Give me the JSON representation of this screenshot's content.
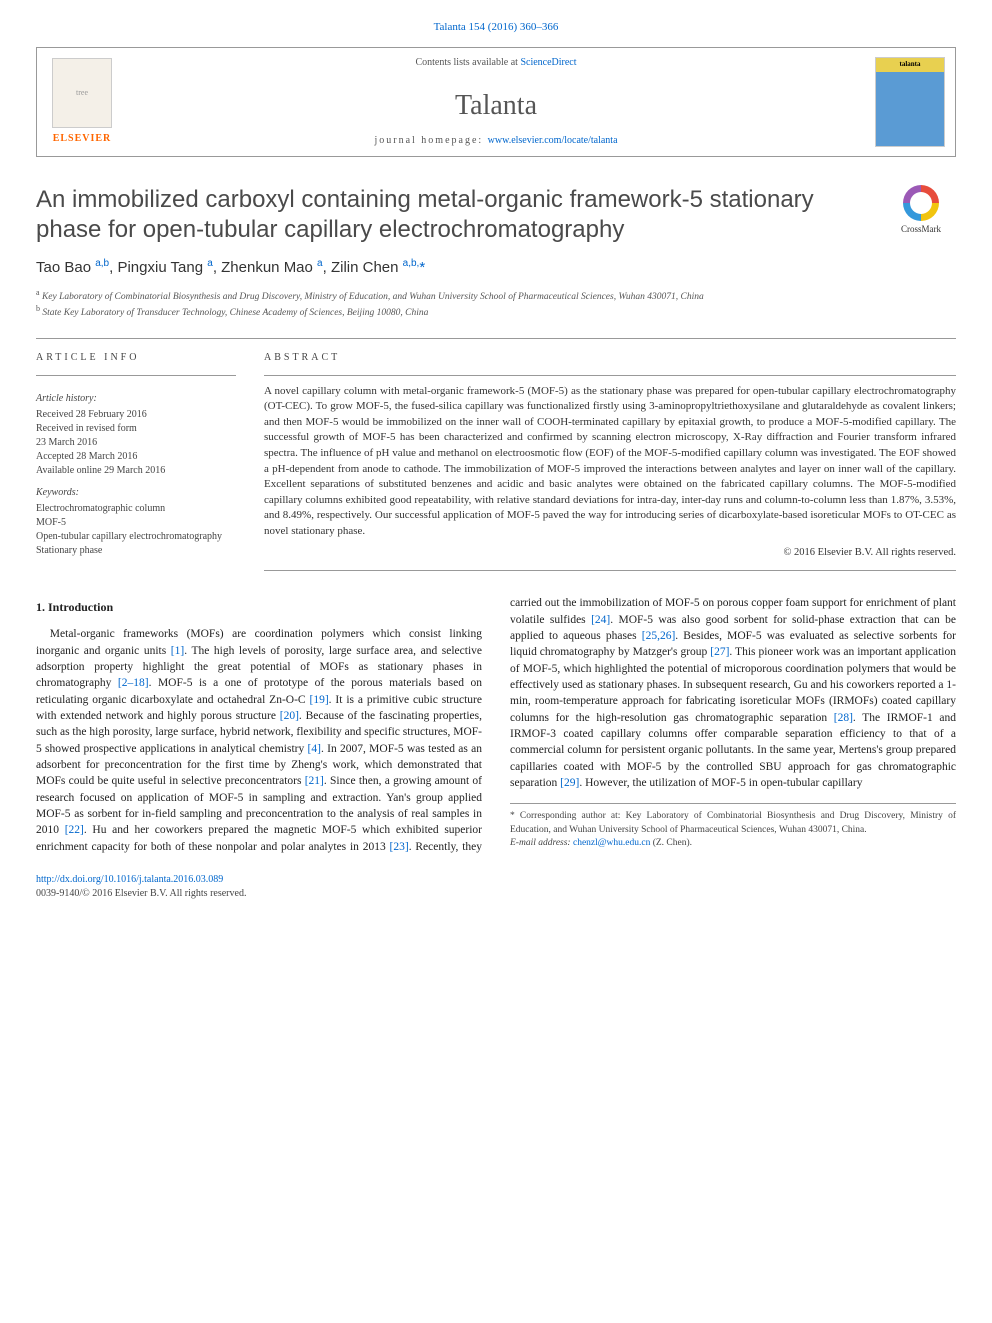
{
  "journal_ref": "Talanta 154 (2016) 360–366",
  "header": {
    "contents_prefix": "Contents lists available at ",
    "contents_link": "ScienceDirect",
    "journal_name": "Talanta",
    "homepage_prefix": "journal homepage: ",
    "homepage_link": "www.elsevier.com/locate/talanta",
    "elsevier": "ELSEVIER",
    "cover_band": "talanta"
  },
  "title": "An immobilized carboxyl containing metal-organic framework-5 stationary phase for open-tubular capillary electrochromatography",
  "crossmark_label": "CrossMark",
  "authors_html": "Tao Bao <sup>a,b</sup>, Pingxiu Tang <sup>a</sup>, Zhenkun Mao <sup>a</sup>, Zilin Chen <sup>a,b,</sup><span class='ast'>*</span>",
  "affiliations": {
    "a": "Key Laboratory of Combinatorial Biosynthesis and Drug Discovery, Ministry of Education, and Wuhan University School of Pharmaceutical Sciences, Wuhan 430071, China",
    "b": "State Key Laboratory of Transducer Technology, Chinese Academy of Sciences, Beijing 10080, China"
  },
  "article_info": {
    "heading": "ARTICLE INFO",
    "history_label": "Article history:",
    "history": [
      "Received 28 February 2016",
      "Received in revised form",
      "23 March 2016",
      "Accepted 28 March 2016",
      "Available online 29 March 2016"
    ],
    "keywords_label": "Keywords:",
    "keywords": [
      "Electrochromatographic column",
      "MOF-5",
      "Open-tubular capillary electrochromatography",
      "Stationary phase"
    ]
  },
  "abstract": {
    "heading": "ABSTRACT",
    "body": "A novel capillary column with metal-organic framework-5 (MOF-5) as the stationary phase was prepared for open-tubular capillary electrochromatography (OT-CEC). To grow MOF-5, the fused-silica capillary was functionalized firstly using 3-aminopropyltriethoxysilane and glutaraldehyde as covalent linkers; and then MOF-5 would be immobilized on the inner wall of COOH-terminated capillary by epitaxial growth, to produce a MOF-5-modified capillary. The successful growth of MOF-5 has been characterized and confirmed by scanning electron microscopy, X-Ray diffraction and Fourier transform infrared spectra. The influence of pH value and methanol on electroosmotic flow (EOF) of the MOF-5-modified capillary column was investigated. The EOF showed a pH-dependent from anode to cathode. The immobilization of MOF-5 improved the interactions between analytes and layer on inner wall of the capillary. Excellent separations of substituted benzenes and acidic and basic analytes were obtained on the fabricated capillary columns. The MOF-5-modified capillary columns exhibited good repeatability, with relative standard deviations for intra-day, inter-day runs and column-to-column less than 1.87%, 3.53%, and 8.49%, respectively. Our successful application of MOF-5 paved the way for introducing series of dicarboxylate-based isoreticular MOFs to OT-CEC as novel stationary phase.",
    "copyright": "© 2016 Elsevier B.V. All rights reserved."
  },
  "section1": {
    "heading": "1. Introduction",
    "p1_a": "Metal-organic frameworks (MOFs) are coordination polymers which consist linking inorganic and organic units ",
    "c1": "[1]",
    "p1_b": ". The high levels of porosity, large surface area, and selective adsorption property highlight the great potential of MOFs as stationary phases in chromatography ",
    "c2": "[2–18]",
    "p1_c": ". MOF-5 is a one of prototype of the porous materials based on reticulating organic dicarboxylate and octahedral Zn-O-C ",
    "c3": "[19]",
    "p1_d": ". It is a primitive cubic structure with extended network and highly porous structure ",
    "c4": "[20]",
    "p1_e": ". Because of the fascinating properties, such as the high porosity, large surface, hybrid network, flexibility and specific structures, MOF-5 showed prospective applications in analytical chemistry ",
    "c5": "[4]",
    "p1_f": ". In 2007, MOF-5 was tested as an adsorbent for preconcentration for the first time by Zheng's work, which demonstrated that MOFs could be quite useful in selective preconcentrators ",
    "c6": "[21]",
    "p1_g": ". Since then, a growing amount of research focused on application of MOF-5 in sampling",
    "p2_a": "and extraction. Yan's group applied MOF-5 as sorbent for in-field sampling and preconcentration to the analysis of real samples in 2010 ",
    "c7": "[22]",
    "p2_b": ". Hu and her coworkers prepared the magnetic MOF-5 which exhibited superior enrichment capacity for both of these nonpolar and polar analytes in 2013 ",
    "c8": "[23]",
    "p2_c": ". Recently, they carried out the immobilization of MOF-5 on porous copper foam support for enrichment of plant volatile sulfides ",
    "c9": "[24]",
    "p2_d": ". MOF-5 was also good sorbent for solid-phase extraction that can be applied to aqueous phases ",
    "c10": "[25,26]",
    "p2_e": ". Besides, MOF-5 was evaluated as selective sorbents for liquid chromatography by Matzger's group ",
    "c11": "[27]",
    "p2_f": ". This pioneer work was an important application of MOF-5, which highlighted the potential of microporous coordination polymers that would be effectively used as stationary phases. In subsequent research, Gu and his coworkers reported a 1-min, room-temperature approach for fabricating isoreticular MOFs (IRMOFs) coated capillary columns for the high-resolution gas chromatographic separation ",
    "c12": "[28]",
    "p2_g": ". The IRMOF-1 and IRMOF-3 coated capillary columns offer comparable separation efficiency to that of a commercial column for persistent organic pollutants. In the same year, Mertens's group prepared capillaries coated with MOF-5 by the controlled SBU approach for gas chromatographic separation ",
    "c13": "[29]",
    "p2_h": ". However, the utilization of MOF-5 in open-tubular capillary"
  },
  "footnotes": {
    "corresp": "* Corresponding author at: Key Laboratory of Combinatorial Biosynthesis and Drug Discovery, Ministry of Education, and Wuhan University School of Pharmaceutical Sciences, Wuhan 430071, China.",
    "email_label": "E-mail address: ",
    "email": "chenzl@whu.edu.cn",
    "email_suffix": " (Z. Chen)."
  },
  "doi": {
    "url": "http://dx.doi.org/10.1016/j.talanta.2016.03.089",
    "issn": "0039-9140/© 2016 Elsevier B.V. All rights reserved."
  },
  "colors": {
    "link": "#0066cc",
    "elsevier_orange": "#ff6600",
    "text": "#333333",
    "rule": "#999999",
    "cover_blue": "#5a9bd4",
    "cover_band": "#e8d050"
  }
}
